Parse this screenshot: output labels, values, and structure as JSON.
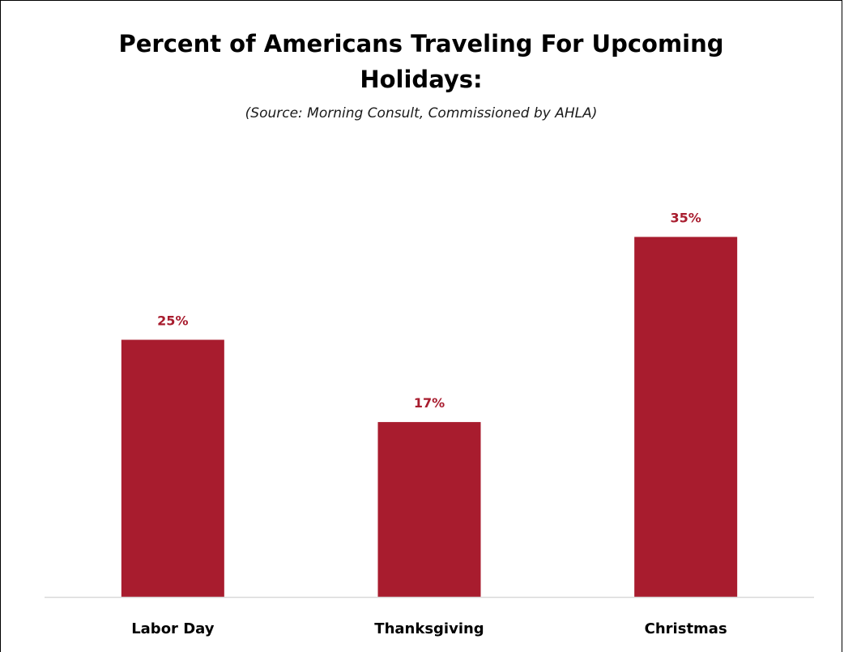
{
  "chart_data": {
    "type": "bar",
    "title": "Percent of Americans Traveling For Upcoming Holidays:",
    "subtitle": "(Source: Morning Consult, Commissioned by AHLA)",
    "categories": [
      "Labor Day",
      "Thanksgiving",
      "Christmas"
    ],
    "values": [
      25,
      17,
      35
    ],
    "value_labels": [
      "25%",
      "17%",
      "35%"
    ],
    "ylim": [
      0,
      40
    ],
    "grid": false,
    "legend": "none",
    "colors": {
      "bar": "#a81c2e",
      "value_label": "#a81c2e",
      "axis": "#d9d9d9"
    }
  }
}
